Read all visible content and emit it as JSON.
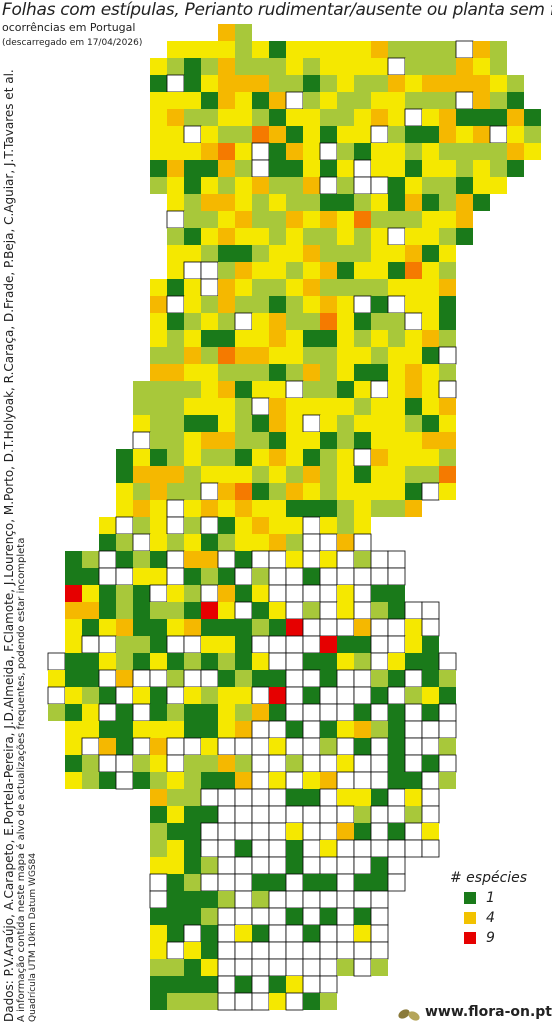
{
  "header": {
    "title": "Folhas com estípulas, Perianto rudimentar/ausente ou planta sem flor",
    "subtitle": "ocorrências em Portugal",
    "date": "(descarregado em 17/04/2026)"
  },
  "credits": [
    "Dados: P.V.Araújo, A.Carapeto, E.Portela-Pereira, J.D.Almeida, F.Clamote, J.Lourenço, M.Porto, D.T.Holyoak, R.Caraça, D.Frade, P.Beja, C.Aguiar, J.T.Tavares et al.",
    "A informação contida neste mapa é alvo de actualizações frequentes, podendo estar incompleta",
    "Quadrícula UTM 10km Datum WGS84"
  ],
  "legend": {
    "title": "# espécies",
    "items": [
      {
        "label": "1",
        "color": "#1a7a1a"
      },
      {
        "label": "4",
        "color": "#f2c200"
      },
      {
        "label": "9",
        "color": "#e60000"
      }
    ]
  },
  "footer": {
    "site": "www.flora-on.pt"
  }
}
